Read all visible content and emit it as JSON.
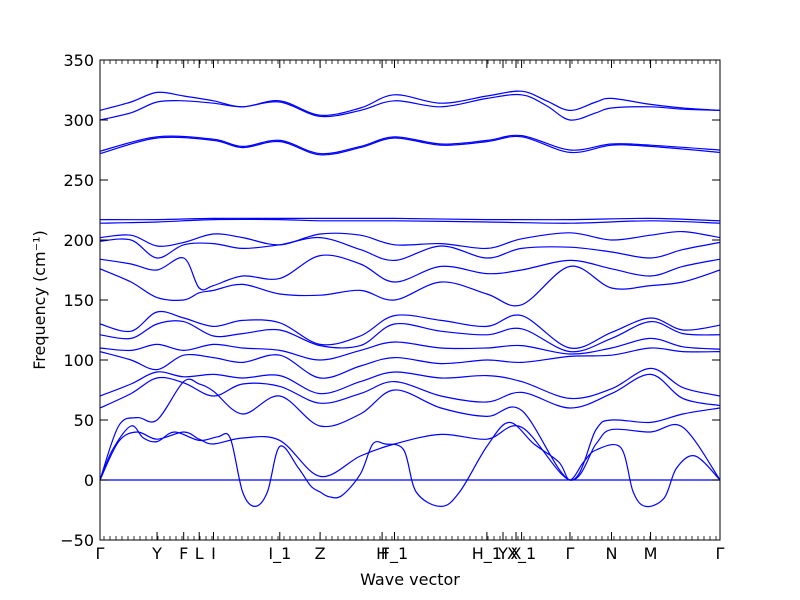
{
  "chart_data": {
    "type": "line",
    "title": "",
    "xlabel": "Wave vector",
    "ylabel": "Frequency (cm⁻¹)",
    "ylim": [
      -50,
      350
    ],
    "yticks": [
      -50,
      0,
      50,
      100,
      150,
      200,
      250,
      300,
      350
    ],
    "xlim": [
      0,
      1
    ],
    "grid": false,
    "legend": "none",
    "line_color": "#0000ff",
    "zero_line": {
      "y": 0,
      "style": "dotted",
      "color": "#0000ff"
    },
    "high_symmetry_points": [
      {
        "label": "Γ",
        "x": 0.0
      },
      {
        "label": "Y",
        "x": 0.092
      },
      {
        "label": "F",
        "x": 0.135
      },
      {
        "label": "L",
        "x": 0.16
      },
      {
        "label": "I",
        "x": 0.183
      },
      {
        "label": "I_1",
        "x": 0.29
      },
      {
        "label": "Z",
        "x": 0.355
      },
      {
        "label": "H",
        "x": 0.455
      },
      {
        "label": "F_1",
        "x": 0.475
      },
      {
        "label": "H_1",
        "x": 0.624
      },
      {
        "label": "Y",
        "x": 0.65
      },
      {
        "label": "X",
        "x": 0.671
      },
      {
        "label": "X_1",
        "x": 0.68
      },
      {
        "label": "Γ",
        "x": 0.758
      },
      {
        "label": "N",
        "x": 0.825
      },
      {
        "label": "M",
        "x": 0.888
      },
      {
        "label": "Γ",
        "x": 1.0
      }
    ],
    "series": [
      {
        "x": [
          0,
          0.05,
          0.092,
          0.135,
          0.183,
          0.23,
          0.29,
          0.355,
          0.42,
          0.475,
          0.55,
          0.624,
          0.68,
          0.72,
          0.758,
          0.8,
          0.825,
          0.888,
          0.94,
          1.0
        ],
        "values": [
          308,
          315,
          323,
          320,
          316,
          311,
          316,
          304,
          310,
          321,
          314,
          320,
          324,
          316,
          308,
          315,
          318,
          313,
          310,
          308
        ]
      },
      {
        "x": [
          0,
          0.05,
          0.092,
          0.135,
          0.183,
          0.23,
          0.29,
          0.355,
          0.42,
          0.475,
          0.55,
          0.624,
          0.68,
          0.72,
          0.758,
          0.8,
          0.825,
          0.888,
          0.94,
          1.0
        ],
        "values": [
          300,
          306,
          315,
          316,
          314,
          311,
          315,
          303,
          308,
          316,
          311,
          318,
          321,
          312,
          300,
          306,
          310,
          311,
          309,
          308
        ]
      },
      {
        "x": [
          0,
          0.092,
          0.183,
          0.23,
          0.29,
          0.355,
          0.42,
          0.475,
          0.55,
          0.624,
          0.68,
          0.758,
          0.825,
          0.888,
          1.0
        ],
        "values": [
          274,
          286,
          284,
          278,
          283,
          272,
          278,
          286,
          280,
          283,
          287,
          275,
          280,
          279,
          275
        ]
      },
      {
        "x": [
          0,
          0.092,
          0.183,
          0.23,
          0.29,
          0.355,
          0.42,
          0.475,
          0.55,
          0.624,
          0.68,
          0.758,
          0.825,
          0.888,
          1.0
        ],
        "values": [
          272,
          285,
          283,
          277,
          282,
          271,
          277,
          285,
          279,
          282,
          286,
          273,
          279,
          278,
          273
        ]
      },
      {
        "x": [
          0,
          0.092,
          0.183,
          0.29,
          0.355,
          0.475,
          0.624,
          0.758,
          0.888,
          1.0
        ],
        "values": [
          217,
          217,
          218,
          218,
          218,
          218,
          217,
          217,
          218,
          216
        ]
      },
      {
        "x": [
          0,
          0.092,
          0.183,
          0.29,
          0.355,
          0.475,
          0.624,
          0.758,
          0.888,
          1.0
        ],
        "values": [
          214,
          215,
          217,
          217,
          216,
          216,
          215,
          214,
          216,
          214
        ]
      },
      {
        "x": [
          0,
          0.05,
          0.092,
          0.135,
          0.183,
          0.23,
          0.29,
          0.355,
          0.42,
          0.475,
          0.55,
          0.624,
          0.68,
          0.758,
          0.825,
          0.888,
          0.94,
          1.0
        ],
        "values": [
          202,
          204,
          195,
          198,
          205,
          202,
          196,
          205,
          204,
          196,
          197,
          193,
          201,
          206,
          200,
          204,
          207,
          202
        ]
      },
      {
        "x": [
          0,
          0.05,
          0.092,
          0.135,
          0.183,
          0.23,
          0.29,
          0.355,
          0.42,
          0.475,
          0.55,
          0.624,
          0.68,
          0.758,
          0.825,
          0.888,
          0.94,
          1.0
        ],
        "values": [
          199,
          200,
          185,
          196,
          197,
          193,
          196,
          202,
          192,
          183,
          195,
          185,
          193,
          194,
          190,
          185,
          192,
          198
        ]
      },
      {
        "x": [
          0,
          0.05,
          0.092,
          0.135,
          0.16,
          0.183,
          0.23,
          0.29,
          0.355,
          0.42,
          0.475,
          0.55,
          0.624,
          0.68,
          0.758,
          0.825,
          0.888,
          0.94,
          1.0
        ],
        "values": [
          184,
          180,
          175,
          185,
          160,
          162,
          170,
          168,
          187,
          180,
          165,
          178,
          172,
          175,
          183,
          176,
          170,
          178,
          184
        ]
      },
      {
        "x": [
          0,
          0.05,
          0.092,
          0.135,
          0.16,
          0.183,
          0.23,
          0.29,
          0.355,
          0.42,
          0.475,
          0.55,
          0.624,
          0.68,
          0.758,
          0.825,
          0.888,
          0.94,
          1.0
        ],
        "values": [
          176,
          165,
          152,
          150,
          156,
          158,
          163,
          155,
          154,
          158,
          150,
          165,
          155,
          146,
          178,
          160,
          162,
          165,
          175
        ]
      },
      {
        "x": [
          0,
          0.05,
          0.092,
          0.135,
          0.183,
          0.23,
          0.29,
          0.355,
          0.42,
          0.475,
          0.55,
          0.624,
          0.68,
          0.758,
          0.825,
          0.888,
          0.94,
          1.0
        ],
        "values": [
          130,
          124,
          140,
          135,
          128,
          133,
          131,
          113,
          120,
          137,
          133,
          128,
          137,
          110,
          123,
          135,
          125,
          129
        ]
      },
      {
        "x": [
          0,
          0.05,
          0.092,
          0.135,
          0.183,
          0.23,
          0.29,
          0.355,
          0.42,
          0.475,
          0.55,
          0.624,
          0.68,
          0.758,
          0.825,
          0.888,
          0.94,
          1.0
        ],
        "values": [
          121,
          118,
          130,
          132,
          120,
          122,
          125,
          112,
          112,
          130,
          124,
          121,
          126,
          107,
          118,
          132,
          122,
          121
        ]
      },
      {
        "x": [
          0,
          0.05,
          0.092,
          0.135,
          0.183,
          0.23,
          0.29,
          0.355,
          0.42,
          0.475,
          0.55,
          0.624,
          0.68,
          0.758,
          0.825,
          0.888,
          0.94,
          1.0
        ],
        "values": [
          110,
          108,
          113,
          108,
          113,
          110,
          108,
          100,
          108,
          115,
          110,
          110,
          112,
          105,
          110,
          118,
          111,
          109
        ]
      },
      {
        "x": [
          0,
          0.05,
          0.092,
          0.135,
          0.183,
          0.23,
          0.29,
          0.355,
          0.42,
          0.475,
          0.55,
          0.624,
          0.68,
          0.758,
          0.825,
          0.888,
          0.94,
          1.0
        ],
        "values": [
          107,
          100,
          92,
          104,
          102,
          98,
          104,
          85,
          95,
          102,
          97,
          100,
          98,
          103,
          104,
          110,
          107,
          107
        ]
      },
      {
        "x": [
          0,
          0.05,
          0.092,
          0.135,
          0.183,
          0.23,
          0.29,
          0.355,
          0.42,
          0.475,
          0.55,
          0.624,
          0.68,
          0.758,
          0.825,
          0.888,
          0.94,
          1.0
        ],
        "values": [
          70,
          80,
          90,
          86,
          88,
          85,
          87,
          72,
          82,
          90,
          85,
          87,
          82,
          68,
          76,
          93,
          77,
          70
        ]
      },
      {
        "x": [
          0,
          0.05,
          0.092,
          0.135,
          0.183,
          0.23,
          0.29,
          0.355,
          0.42,
          0.475,
          0.55,
          0.624,
          0.68,
          0.758,
          0.825,
          0.888,
          0.94,
          1.0
        ],
        "values": [
          60,
          72,
          85,
          81,
          70,
          80,
          78,
          64,
          72,
          82,
          70,
          65,
          73,
          60,
          72,
          88,
          68,
          62
        ]
      },
      {
        "x": [
          0,
          0.03,
          0.06,
          0.092,
          0.135,
          0.16,
          0.183,
          0.23,
          0.29,
          0.355,
          0.42,
          0.475,
          0.55,
          0.624,
          0.68,
          0.758,
          0.8,
          0.825,
          0.888,
          0.94,
          1.0
        ],
        "values": [
          0,
          45,
          52,
          50,
          82,
          80,
          74,
          55,
          70,
          45,
          55,
          75,
          60,
          53,
          58,
          0,
          42,
          50,
          48,
          55,
          60
        ]
      },
      {
        "x": [
          0,
          0.03,
          0.06,
          0.092,
          0.135,
          0.16,
          0.183,
          0.23,
          0.29,
          0.355,
          0.42,
          0.475,
          0.55,
          0.624,
          0.68,
          0.758,
          0.8,
          0.825,
          0.888,
          0.94,
          1.0
        ],
        "values": [
          0,
          32,
          40,
          34,
          40,
          34,
          30,
          35,
          33,
          3,
          20,
          30,
          38,
          34,
          44,
          0,
          30,
          42,
          40,
          44,
          0
        ]
      },
      {
        "x": [
          0,
          0.02,
          0.05,
          0.07,
          0.092,
          0.12,
          0.16,
          0.19,
          0.21,
          0.23,
          0.25,
          0.27,
          0.29,
          0.32,
          0.34,
          0.355,
          0.37,
          0.39,
          0.42,
          0.44,
          0.46,
          0.49,
          0.51,
          0.55,
          0.58,
          0.624,
          0.66,
          0.7,
          0.74,
          0.758,
          0.78,
          0.8,
          0.84,
          0.86,
          0.88,
          0.91,
          0.93,
          0.96,
          1.0
        ],
        "values": [
          0,
          25,
          45,
          35,
          32,
          40,
          33,
          36,
          35,
          -10,
          -22,
          -10,
          28,
          10,
          -5,
          -10,
          -14,
          -13,
          5,
          30,
          30,
          25,
          -10,
          -22,
          -10,
          28,
          48,
          30,
          15,
          0,
          15,
          25,
          27,
          -10,
          -22,
          -15,
          10,
          20,
          0
        ]
      },
      {
        "x": [
          0,
          0.092,
          0.183,
          0.29,
          0.355,
          0.475,
          0.624,
          0.758,
          0.888,
          1.0
        ],
        "values": [
          0,
          0,
          0,
          0,
          0,
          0,
          0,
          0,
          0,
          0
        ]
      }
    ]
  }
}
